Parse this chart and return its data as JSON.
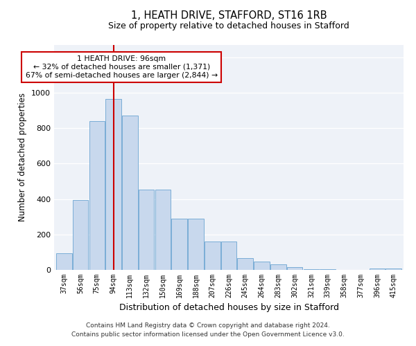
{
  "title1": "1, HEATH DRIVE, STAFFORD, ST16 1RB",
  "title2": "Size of property relative to detached houses in Stafford",
  "xlabel": "Distribution of detached houses by size in Stafford",
  "ylabel": "Number of detached properties",
  "categories": [
    "37sqm",
    "56sqm",
    "75sqm",
    "94sqm",
    "113sqm",
    "132sqm",
    "150sqm",
    "169sqm",
    "188sqm",
    "207sqm",
    "226sqm",
    "245sqm",
    "264sqm",
    "283sqm",
    "302sqm",
    "321sqm",
    "339sqm",
    "358sqm",
    "377sqm",
    "396sqm",
    "415sqm"
  ],
  "values": [
    95,
    395,
    840,
    965,
    870,
    455,
    455,
    290,
    290,
    160,
    160,
    65,
    45,
    30,
    17,
    5,
    5,
    0,
    0,
    8,
    8
  ],
  "bar_color": "#c8d8ed",
  "bar_edge_color": "#7aadd6",
  "annotation_box_color": "#ffffff",
  "annotation_box_edge": "#cc0000",
  "line_color": "#cc0000",
  "annotation_text": "1 HEATH DRIVE: 96sqm\n← 32% of detached houses are smaller (1,371)\n67% of semi-detached houses are larger (2,844) →",
  "property_line_x": 3.0,
  "footer1": "Contains HM Land Registry data © Crown copyright and database right 2024.",
  "footer2": "Contains public sector information licensed under the Open Government Licence v3.0.",
  "ylim": [
    0,
    1270
  ],
  "yticks": [
    0,
    200,
    400,
    600,
    800,
    1000,
    1200
  ]
}
